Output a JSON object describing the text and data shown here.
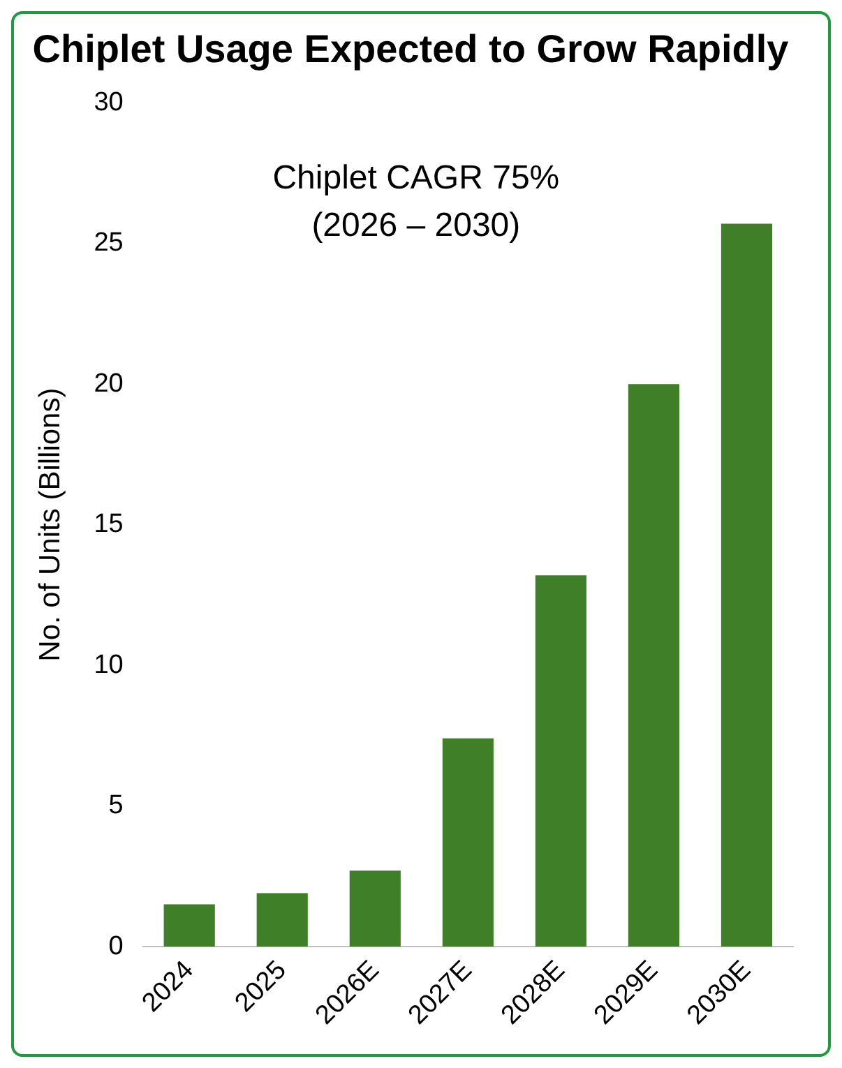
{
  "chart_data": {
    "type": "bar",
    "title": "Chiplet Usage Expected to Grow Rapidly",
    "ylabel": "No. of Units (Billions)",
    "categories": [
      "2024",
      "2025",
      "2026E",
      "2027E",
      "2028E",
      "2029E",
      "2030E"
    ],
    "values": [
      1.5,
      1.9,
      2.7,
      7.4,
      13.2,
      20.0,
      25.7
    ],
    "color": "#3f7f27",
    "ylim": [
      0,
      30
    ],
    "yticks": [
      0,
      5,
      10,
      15,
      20,
      25,
      30
    ],
    "grid": false,
    "annotations": [
      "Chiplet CAGR 75%",
      "(2026 – 2030)"
    ]
  }
}
